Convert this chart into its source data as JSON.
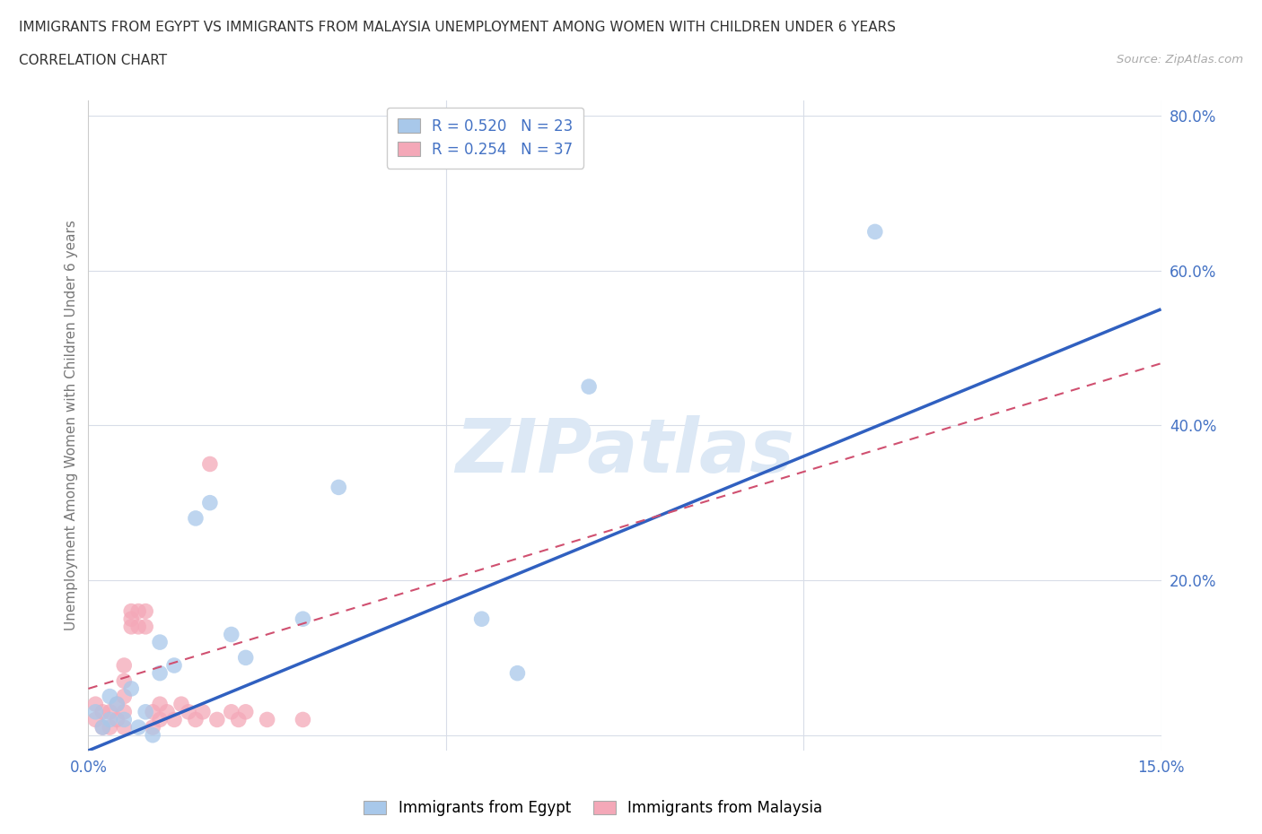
{
  "title_line1": "IMMIGRANTS FROM EGYPT VS IMMIGRANTS FROM MALAYSIA UNEMPLOYMENT AMONG WOMEN WITH CHILDREN UNDER 6 YEARS",
  "title_line2": "CORRELATION CHART",
  "source_text": "Source: ZipAtlas.com",
  "ylabel": "Unemployment Among Women with Children Under 6 years",
  "xlim": [
    0.0,
    0.15
  ],
  "ylim": [
    -0.02,
    0.82
  ],
  "egypt_color": "#a8c8ea",
  "malaysia_color": "#f4a8b8",
  "egypt_r": 0.52,
  "egypt_n": 23,
  "malaysia_r": 0.254,
  "malaysia_n": 37,
  "egypt_line_color": "#3060c0",
  "malaysia_line_color": "#d05070",
  "background_color": "#ffffff",
  "grid_color": "#d8dde8",
  "watermark_color": "#dce8f5",
  "egypt_x": [
    0.001,
    0.002,
    0.003,
    0.003,
    0.004,
    0.005,
    0.006,
    0.007,
    0.008,
    0.009,
    0.01,
    0.01,
    0.012,
    0.015,
    0.017,
    0.02,
    0.022,
    0.03,
    0.035,
    0.055,
    0.06,
    0.07,
    0.11
  ],
  "egypt_y": [
    0.03,
    0.01,
    0.02,
    0.05,
    0.04,
    0.02,
    0.06,
    0.01,
    0.03,
    0.0,
    0.08,
    0.12,
    0.09,
    0.28,
    0.3,
    0.13,
    0.1,
    0.15,
    0.32,
    0.15,
    0.08,
    0.45,
    0.65
  ],
  "malaysia_x": [
    0.001,
    0.001,
    0.002,
    0.002,
    0.003,
    0.003,
    0.004,
    0.004,
    0.005,
    0.005,
    0.005,
    0.005,
    0.005,
    0.006,
    0.006,
    0.006,
    0.007,
    0.007,
    0.008,
    0.008,
    0.009,
    0.009,
    0.01,
    0.01,
    0.011,
    0.012,
    0.013,
    0.014,
    0.015,
    0.016,
    0.017,
    0.018,
    0.02,
    0.021,
    0.022,
    0.025,
    0.03
  ],
  "malaysia_y": [
    0.02,
    0.04,
    0.01,
    0.03,
    0.01,
    0.03,
    0.02,
    0.04,
    0.01,
    0.03,
    0.05,
    0.07,
    0.09,
    0.14,
    0.15,
    0.16,
    0.14,
    0.16,
    0.14,
    0.16,
    0.01,
    0.03,
    0.02,
    0.04,
    0.03,
    0.02,
    0.04,
    0.03,
    0.02,
    0.03,
    0.35,
    0.02,
    0.03,
    0.02,
    0.03,
    0.02,
    0.02
  ],
  "egypt_line_x": [
    0.0,
    0.15
  ],
  "egypt_line_y": [
    -0.02,
    0.55
  ],
  "malaysia_line_x": [
    0.0,
    0.15
  ],
  "malaysia_line_y": [
    0.06,
    0.48
  ]
}
